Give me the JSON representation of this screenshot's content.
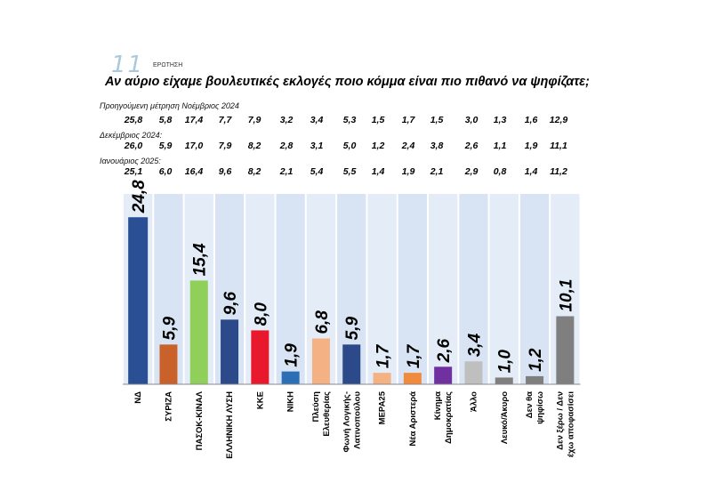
{
  "header": {
    "number": "11",
    "label": "ΕΡΩΤΗΣΗ",
    "question": "Αν αύριο είχαμε βουλευτικές εκλογές ποιο κόμμα είναι πιο πιθανό να ψηφίζατε;"
  },
  "previous": [
    {
      "label": "Προηγούμενη μέτρηση Νοέμβριος 2024",
      "values": [
        "25,8",
        "5,8",
        "17,4",
        "7,7",
        "7,9",
        "3,2",
        "3,4",
        "5,3",
        "1,5",
        "1,7",
        "1,5",
        "3,0",
        "1,3",
        "1,6",
        "12,9"
      ]
    },
    {
      "label": "Δεκέμβριος 2024:",
      "values": [
        "26,0",
        "5,9",
        "17,0",
        "7,9",
        "8,2",
        "2,8",
        "3,1",
        "5,0",
        "1,2",
        "2,4",
        "3,8",
        "2,6",
        "1,1",
        "1,9",
        "11,1"
      ]
    },
    {
      "label": "Ιανουάριος 2025:",
      "values": [
        "25,1",
        "6,0",
        "16,4",
        "9,6",
        "8,2",
        "2,1",
        "5,4",
        "5,5",
        "1,4",
        "1,9",
        "2,1",
        "2,9",
        "0,8",
        "1,4",
        "11,2"
      ]
    }
  ],
  "chart_data": {
    "type": "bar",
    "title": "",
    "xlabel": "",
    "ylabel": "",
    "ylim": [
      0,
      28
    ],
    "categories": [
      [
        "ΝΔ"
      ],
      [
        "ΣΥΡΙΖΑ"
      ],
      [
        "ΠΑΣΟΚ-ΚΙΝΑΛ"
      ],
      [
        "ΕΛΛΗΝΙΚΗ ΛΥΣΗ"
      ],
      [
        "ΚΚΕ"
      ],
      [
        "ΝΙΚΗ"
      ],
      [
        "Πλεύση",
        "Ελευθερίας"
      ],
      [
        "Φωνή Λογικής-",
        "Λατινοπούλου"
      ],
      [
        "ΜΕΡΑ25"
      ],
      [
        "Νέα Αριστερά"
      ],
      [
        "Κίνημα",
        "Δημοκρατίας"
      ],
      [
        "Άλλο"
      ],
      [
        "Λευκό/Άκυρο"
      ],
      [
        "Δεν θα",
        "ψηφίσω"
      ],
      [
        "Δεν ξέρω / Δεν",
        "έχω αποφασίσει"
      ]
    ],
    "values": [
      24.8,
      5.9,
      15.4,
      9.6,
      8.0,
      1.9,
      6.8,
      5.9,
      1.7,
      1.7,
      2.6,
      3.4,
      1.0,
      1.2,
      10.1
    ],
    "value_labels": [
      "24,8",
      "5,9",
      "15,4",
      "9,6",
      "8,0",
      "1,9",
      "6,8",
      "5,9",
      "1,7",
      "1,7",
      "2,6",
      "3,4",
      "1,0",
      "1,2",
      "10,1"
    ],
    "colors": [
      "#2b4f95",
      "#c9622a",
      "#8fcf5a",
      "#2c4a8a",
      "#e8192c",
      "#2d6fb5",
      "#f4b183",
      "#2c4a8a",
      "#f4b183",
      "#f08a3c",
      "#7030a0",
      "#bfbfbf",
      "#7f7f7f",
      "#7f7f7f",
      "#7f7f7f"
    ],
    "grid": false,
    "legend": "none"
  }
}
